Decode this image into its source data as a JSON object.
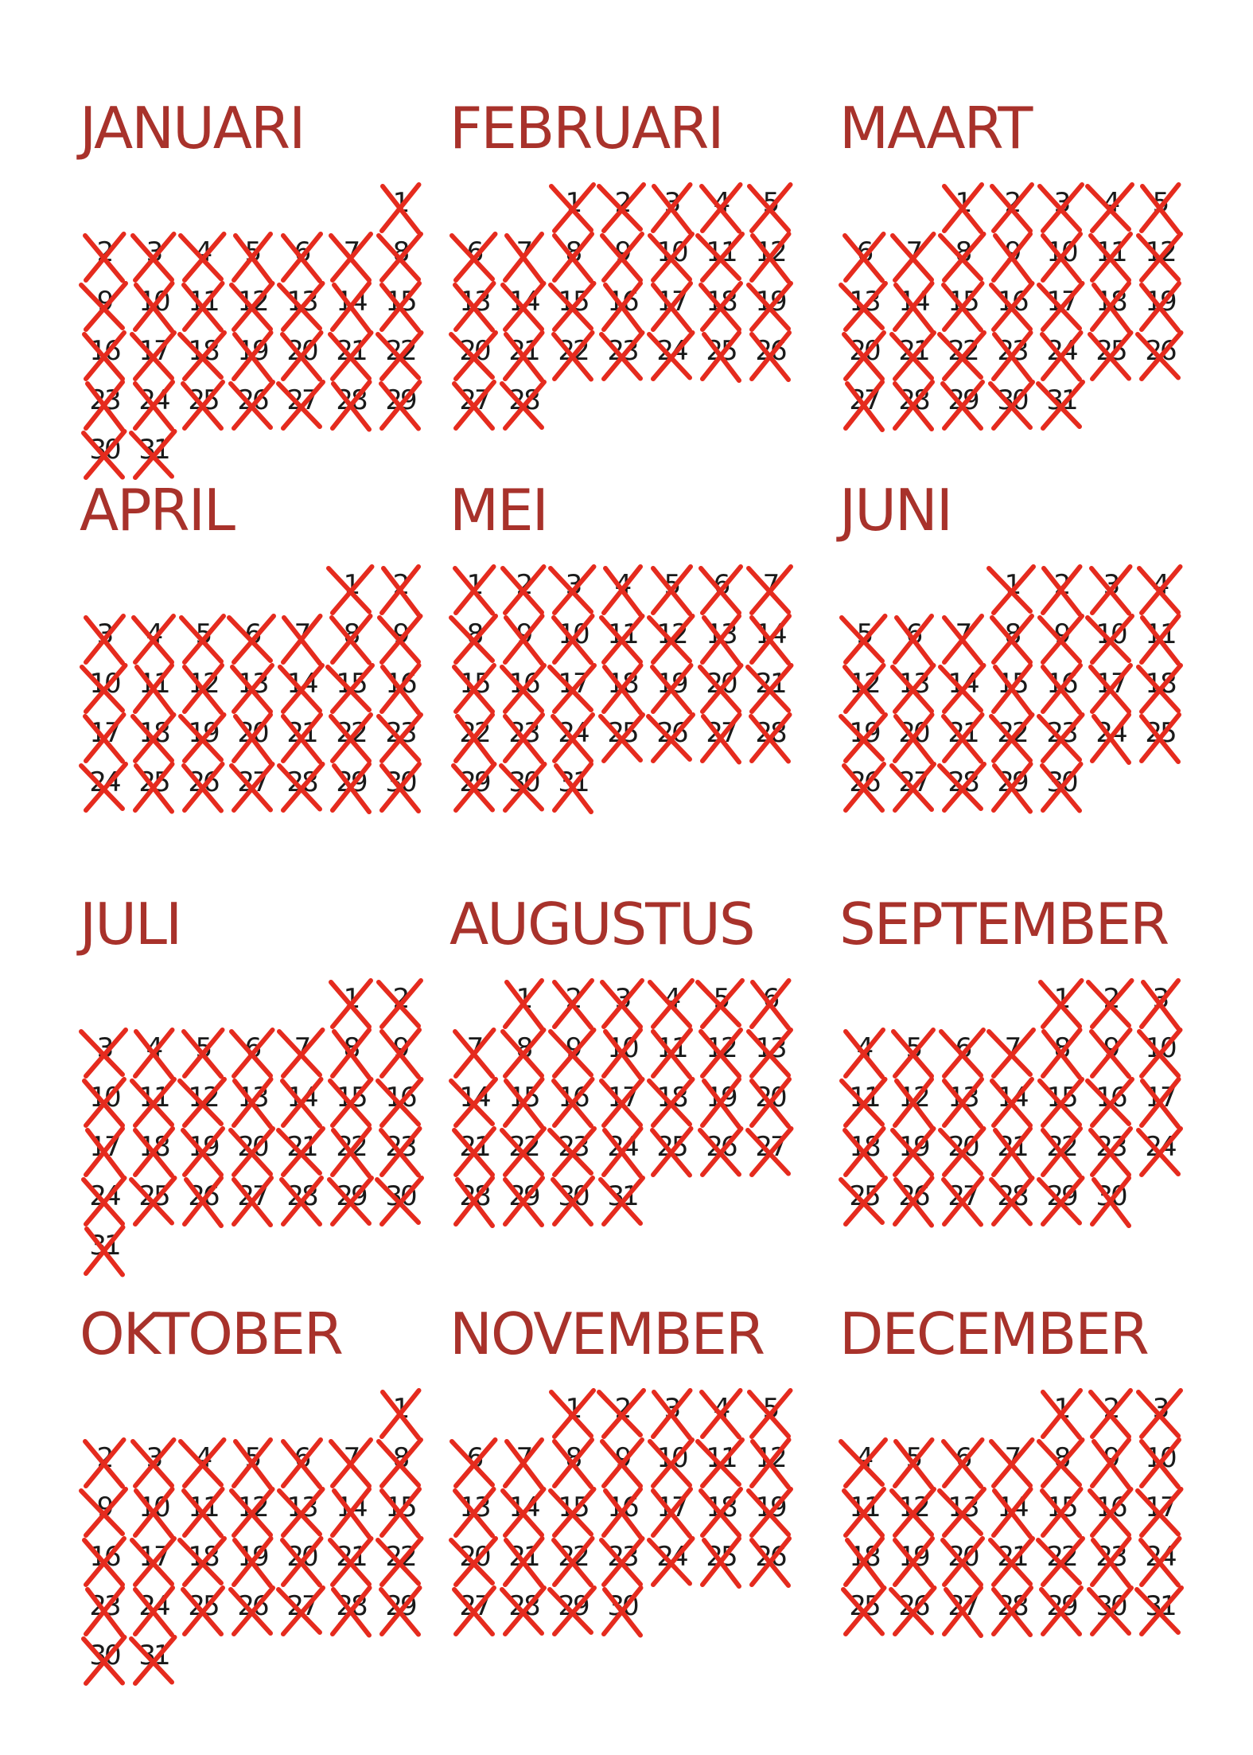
{
  "colors": {
    "title": "#a8322b",
    "cross": "#e52b1e",
    "day_number": "#1a1a1a"
  },
  "icon": "cross-mark-icon",
  "months": [
    {
      "name": "JANUARI",
      "first_weekday": 6,
      "days": 31
    },
    {
      "name": "FEBRUARI",
      "first_weekday": 2,
      "days": 28
    },
    {
      "name": "MAART",
      "first_weekday": 2,
      "days": 31
    },
    {
      "name": "APRIL",
      "first_weekday": 5,
      "days": 30
    },
    {
      "name": "MEI",
      "first_weekday": 0,
      "days": 31
    },
    {
      "name": "JUNI",
      "first_weekday": 3,
      "days": 30
    },
    {
      "name": "JULI",
      "first_weekday": 5,
      "days": 31
    },
    {
      "name": "AUGUSTUS",
      "first_weekday": 1,
      "days": 31
    },
    {
      "name": "SEPTEMBER",
      "first_weekday": 4,
      "days": 30
    },
    {
      "name": "OKTOBER",
      "first_weekday": 6,
      "days": 31
    },
    {
      "name": "NOVEMBER",
      "first_weekday": 2,
      "days": 30
    },
    {
      "name": "DECEMBER",
      "first_weekday": 4,
      "days": 31
    }
  ]
}
